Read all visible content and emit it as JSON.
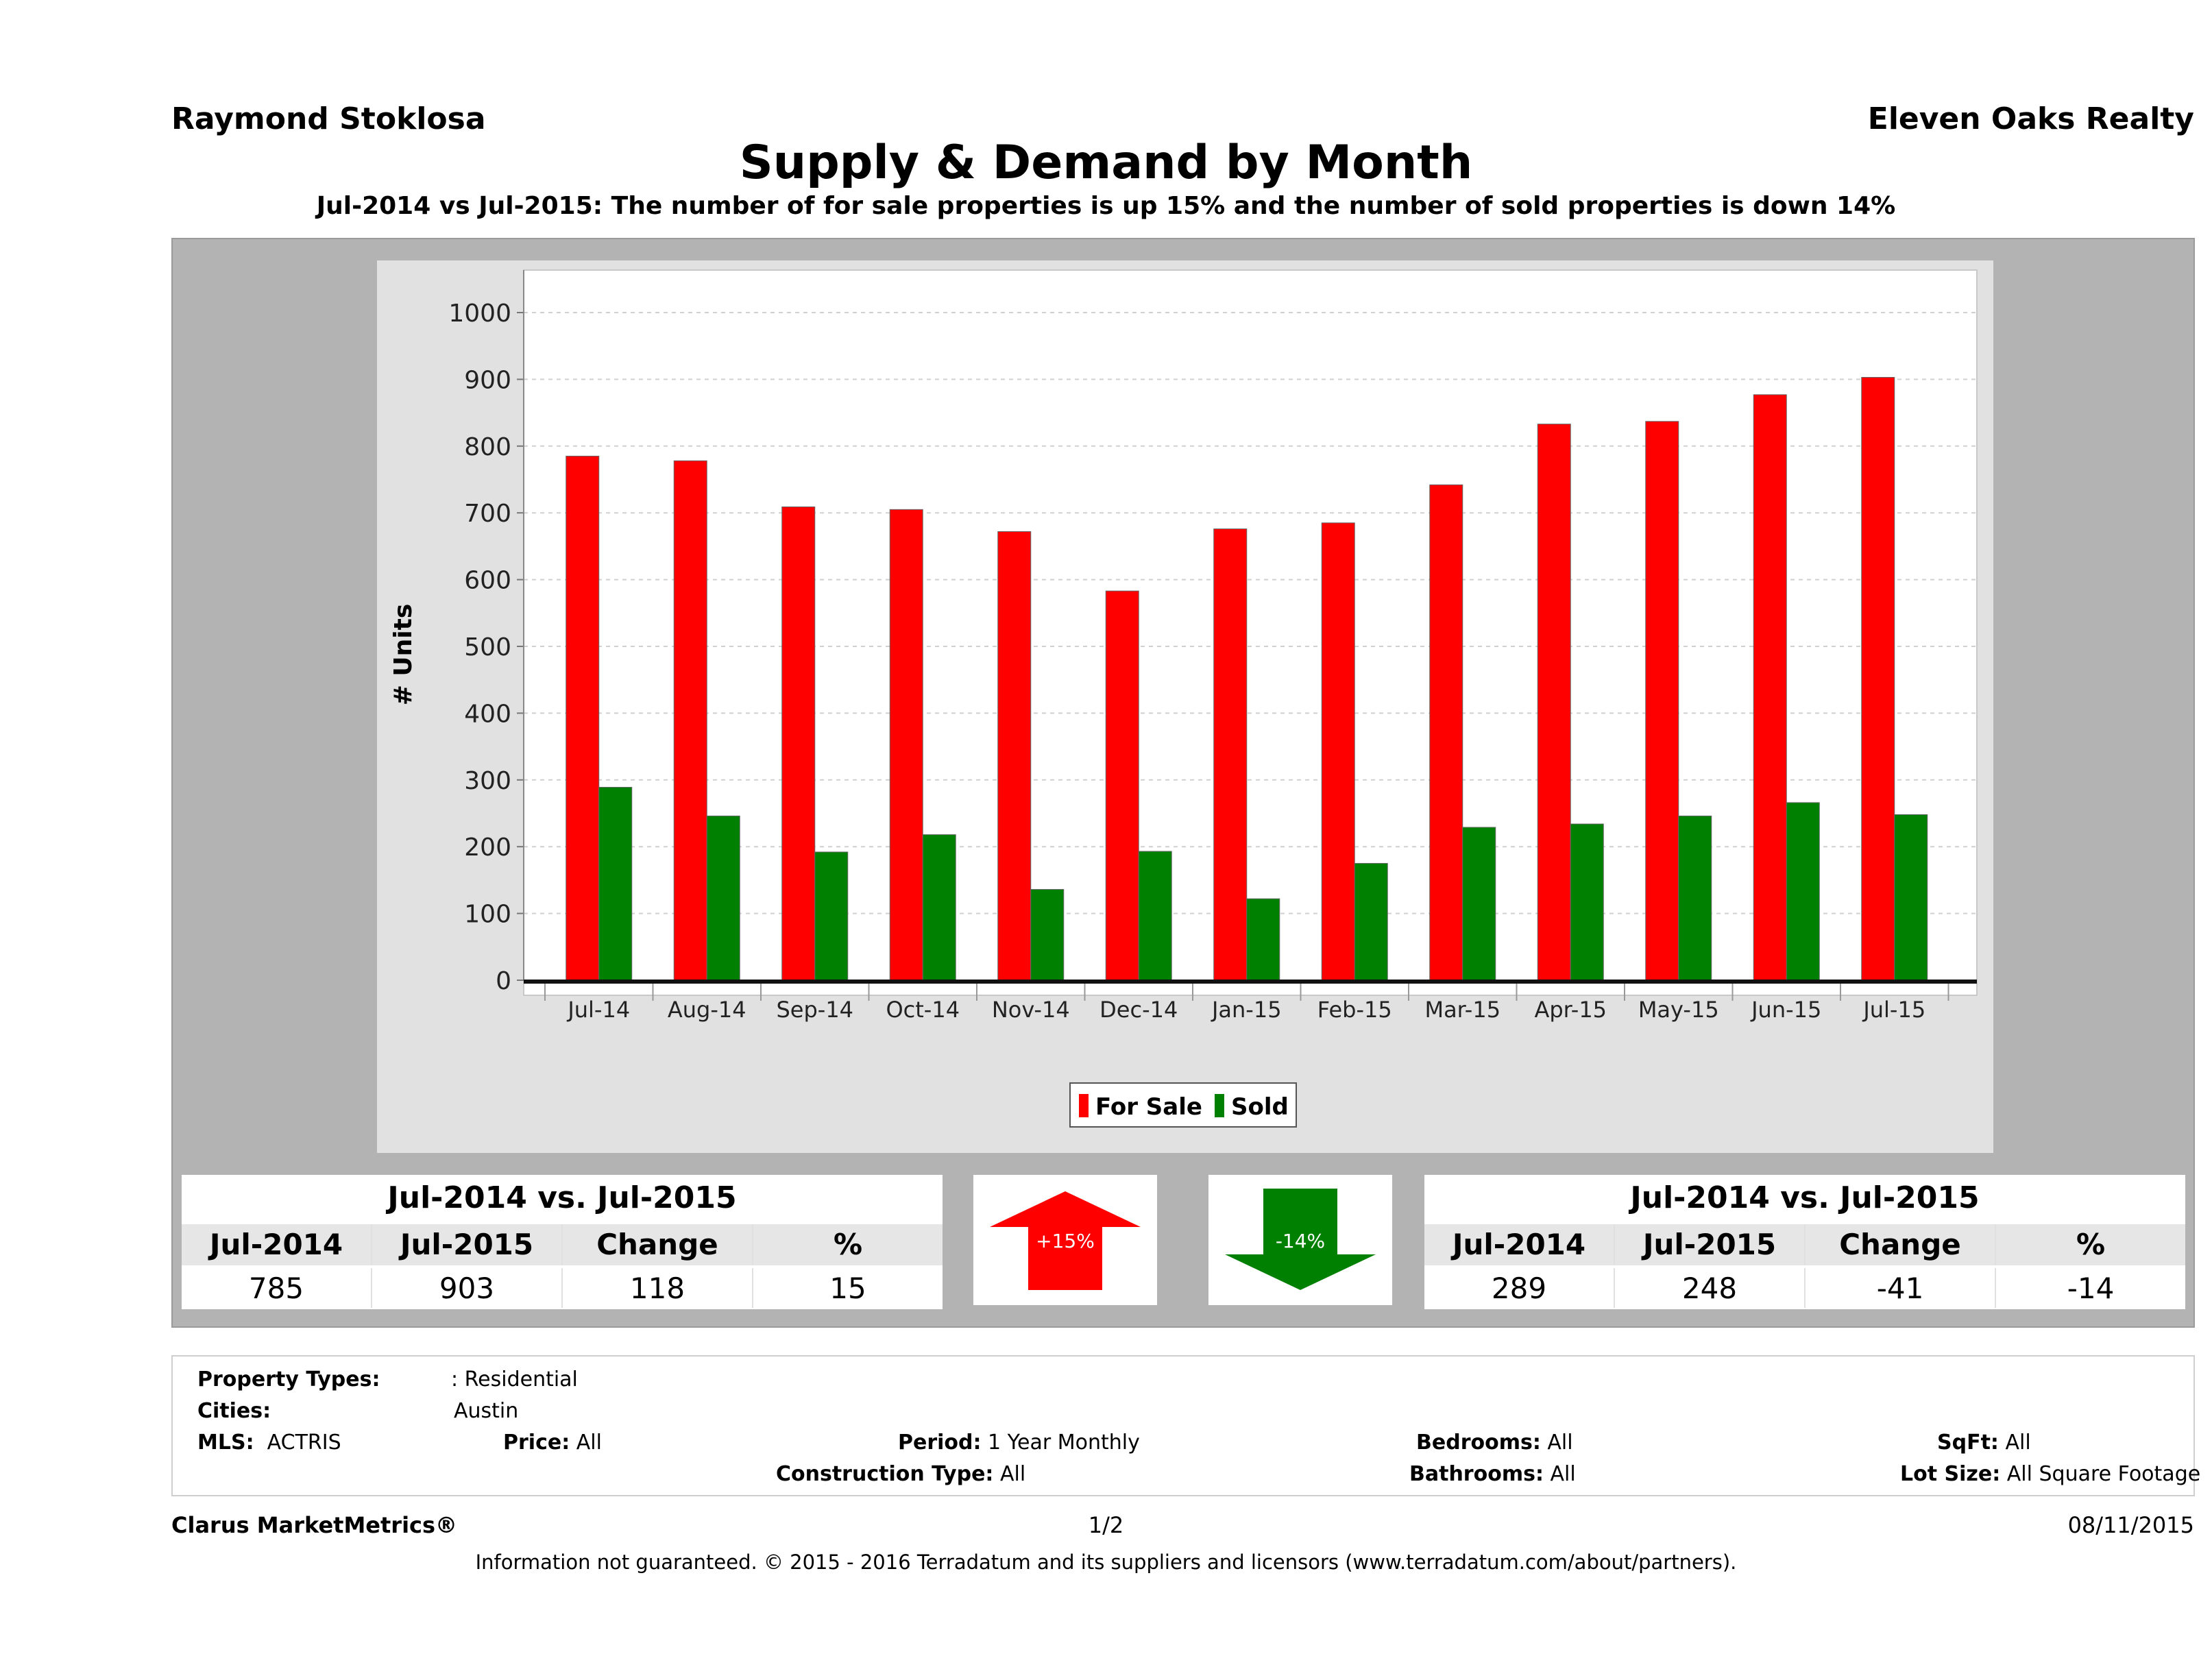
{
  "header": {
    "agent": "Raymond Stoklosa",
    "brokerage": "Eleven Oaks Realty"
  },
  "chart_data": {
    "type": "bar",
    "title": "Supply & Demand by Month",
    "subtitle": "Jul-2014 vs Jul-2015: The number of for sale properties is up 15% and the number of sold properties is down 14%",
    "ylabel": "# Units",
    "xlabel": "",
    "ylim": [
      0,
      1000
    ],
    "yticks": [
      0,
      100,
      200,
      300,
      400,
      500,
      600,
      700,
      800,
      900,
      1000
    ],
    "categories": [
      "Jul-14",
      "Aug-14",
      "Sep-14",
      "Oct-14",
      "Nov-14",
      "Dec-14",
      "Jan-15",
      "Feb-15",
      "Mar-15",
      "Apr-15",
      "May-15",
      "Jun-15",
      "Jul-15"
    ],
    "series": [
      {
        "name": "For Sale",
        "color": "#ff0000",
        "values": [
          785,
          778,
          709,
          705,
          672,
          583,
          676,
          685,
          742,
          833,
          837,
          877,
          903
        ]
      },
      {
        "name": "Sold",
        "color": "#008000",
        "values": [
          289,
          246,
          192,
          218,
          136,
          193,
          122,
          175,
          229,
          234,
          246,
          266,
          248
        ]
      }
    ],
    "grid": true,
    "legend": "bottom-center"
  },
  "summary_for_sale": {
    "title": "Jul-2014 vs. Jul-2015",
    "headers": [
      "Jul-2014",
      "Jul-2015",
      "Change",
      "%"
    ],
    "values": [
      "785",
      "903",
      "118",
      "15"
    ],
    "arrow_label": "+15%",
    "arrow_color": "#ff0000"
  },
  "summary_sold": {
    "title": "Jul-2014 vs. Jul-2015",
    "headers": [
      "Jul-2014",
      "Jul-2015",
      "Change",
      "%"
    ],
    "values": [
      "289",
      "248",
      "-41",
      "-14"
    ],
    "arrow_label": "-14%",
    "arrow_color": "#008000"
  },
  "filters": {
    "property_types_label": "Property Types:",
    "property_types": ": Residential",
    "cities_label": "Cities:",
    "cities": "Austin",
    "mls_label": "MLS:",
    "mls": "ACTRIS",
    "price_label": "Price:",
    "price": "All",
    "period_label": "Period:",
    "period": "1 Year Monthly",
    "construction_label": "Construction Type:",
    "construction": "All",
    "bedrooms_label": "Bedrooms:",
    "bedrooms": "All",
    "bathrooms_label": "Bathrooms:",
    "bathrooms": "All",
    "sqft_label": "SqFt:",
    "sqft": "All",
    "lot_label": "Lot Size:",
    "lot": "All Square Footage"
  },
  "footer": {
    "brand": "Clarus MarketMetrics®",
    "page": "1/2",
    "date": "08/11/2015",
    "disclaimer": "Information not guaranteed. © 2015 - 2016 Terradatum and its suppliers and licensors (www.terradatum.com/about/partners)."
  }
}
